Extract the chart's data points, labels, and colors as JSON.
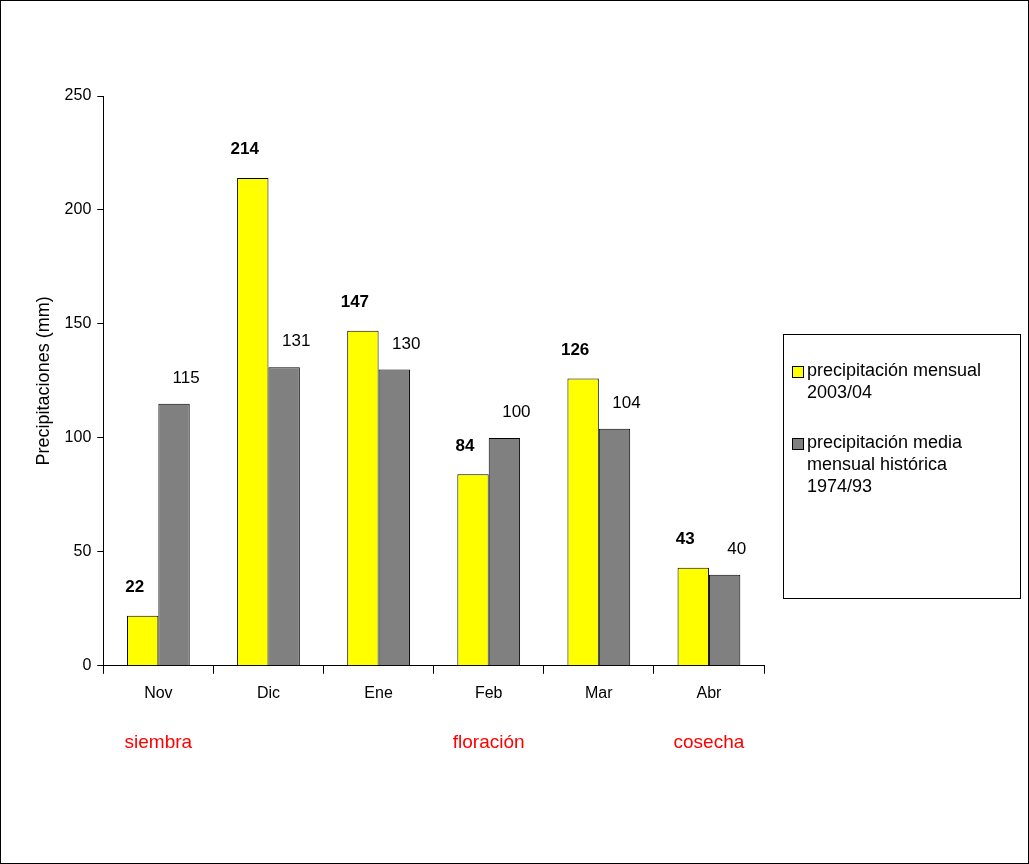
{
  "chart_data": {
    "type": "bar",
    "categories": [
      "Nov",
      "Dic",
      "Ene",
      "Feb",
      "Mar",
      "Abr"
    ],
    "ylabel": "Precipitaciones (mm)",
    "series": [
      {
        "name": "precipitación mensual 2003/04",
        "color": "#ffff00",
        "values": [
          22,
          214,
          147,
          84,
          126,
          43
        ]
      },
      {
        "name": "precipitación media mensual histórica 1974/93",
        "color": "#808080",
        "values": [
          115,
          131,
          130,
          100,
          104,
          40
        ]
      }
    ],
    "ylim": [
      0,
      250
    ],
    "yticks": [
      0,
      50,
      100,
      150,
      200,
      250
    ],
    "grid": false,
    "legend": "right",
    "data_labels": true,
    "annotations": [
      "siembra",
      "floración",
      "cosecha"
    ]
  }
}
